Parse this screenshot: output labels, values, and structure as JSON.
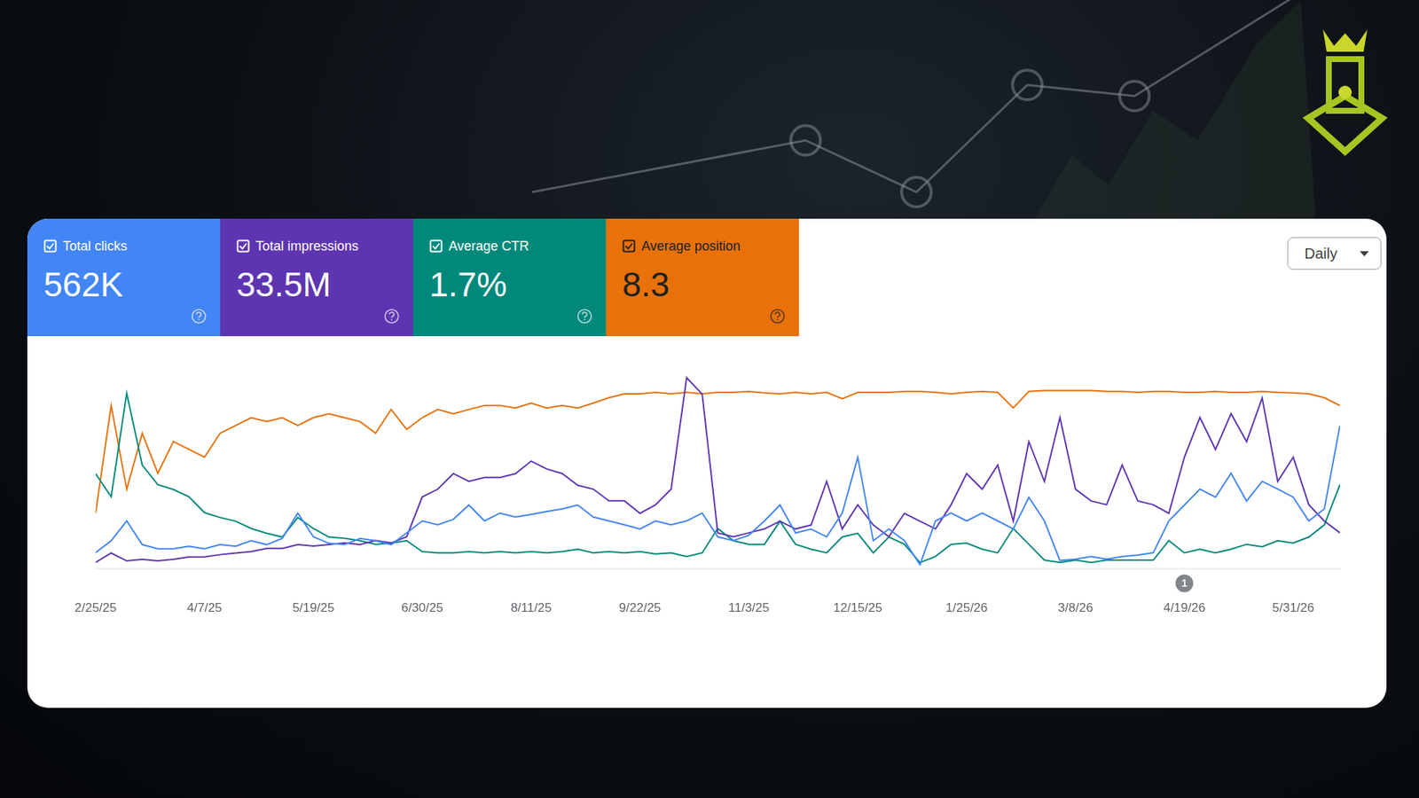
{
  "header": {
    "dropdown": "Daily"
  },
  "chart_data": {
    "type": "line",
    "categories": [
      "2/25/25",
      null,
      null,
      null,
      null,
      null,
      null,
      "4/7/25",
      null,
      null,
      null,
      null,
      null,
      null,
      "5/19/25",
      null,
      null,
      null,
      null,
      null,
      null,
      "6/30/25",
      null,
      null,
      null,
      null,
      null,
      null,
      "8/11/25",
      null,
      null,
      null,
      null,
      null,
      null,
      "9/22/25",
      null,
      null,
      null,
      null,
      null,
      null,
      "11/3/25",
      null,
      null,
      null,
      null,
      null,
      null,
      "12/15/25",
      null,
      null,
      null,
      null,
      null,
      null,
      "1/25/26",
      null,
      null,
      null,
      null,
      null,
      null,
      "3/8/26",
      null,
      null,
      null,
      null,
      null,
      null,
      "4/19/26",
      null,
      null,
      null,
      null,
      null,
      null,
      "5/31/26",
      null,
      null,
      null
    ],
    "series": [
      {
        "name": "Total clicks",
        "total": "562K",
        "color": "#4285f4",
        "ylim": [
          0,
          6000
        ],
        "values": [
          490,
          860,
          1470,
          740,
          610,
          610,
          690,
          610,
          740,
          690,
          860,
          740,
          930,
          1710,
          980,
          780,
          740,
          930,
          860,
          740,
          1100,
          1470,
          1350,
          1520,
          1960,
          1470,
          1710,
          1590,
          1670,
          1760,
          1840,
          1960,
          1590,
          1470,
          1350,
          1220,
          1470,
          1350,
          1470,
          1710,
          980,
          860,
          1030,
          1470,
          1960,
          1100,
          1220,
          980,
          1710,
          3430,
          860,
          1220,
          860,
          120,
          1470,
          1710,
          1470,
          1710,
          1470,
          1220,
          2200,
          1470,
          250,
          290,
          370,
          290,
          370,
          420,
          490,
          1470,
          1960,
          2450,
          2200,
          2940,
          2080,
          2690,
          2450,
          2200,
          1470,
          1840,
          4410
        ]
      },
      {
        "name": "Total impressions",
        "total": "33.5M",
        "color": "#5e35b1",
        "ylim": [
          0,
          250000
        ],
        "values": [
          8000,
          20000,
          10000,
          12000,
          10000,
          12000,
          15000,
          15000,
          18000,
          20000,
          22000,
          26000,
          26000,
          31000,
          29000,
          31000,
          33000,
          31000,
          36000,
          33000,
          41000,
          92000,
          102000,
          122000,
          112000,
          117000,
          117000,
          122000,
          138000,
          128000,
          122000,
          107000,
          102000,
          87000,
          87000,
          71000,
          82000,
          102000,
          245000,
          224000,
          46000,
          41000,
          46000,
          51000,
          61000,
          51000,
          56000,
          112000,
          51000,
          82000,
          56000,
          41000,
          71000,
          61000,
          51000,
          82000,
          122000,
          102000,
          133000,
          61000,
          163000,
          112000,
          194000,
          102000,
          87000,
          82000,
          133000,
          87000,
          82000,
          71000,
          143000,
          194000,
          153000,
          199000,
          163000,
          219000,
          112000,
          143000,
          82000,
          61000,
          46000
        ]
      },
      {
        "name": "Average CTR",
        "total": "1.7%",
        "color": "#00897b",
        "ylim": [
          0,
          16
        ],
        "values": [
          7.8,
          5.9,
          14.4,
          8.5,
          6.9,
          6.5,
          5.9,
          4.6,
          4.2,
          3.9,
          3.3,
          2.9,
          2.6,
          4.2,
          3.3,
          2.6,
          2.5,
          2.3,
          2.0,
          2.1,
          2.3,
          1.4,
          1.3,
          1.3,
          1.4,
          1.3,
          1.4,
          1.3,
          1.4,
          1.3,
          1.4,
          1.6,
          1.3,
          1.4,
          1.3,
          1.4,
          1.2,
          1.3,
          1.0,
          1.3,
          3.3,
          2.3,
          2.0,
          2.0,
          3.9,
          2.0,
          1.6,
          1.3,
          2.6,
          2.9,
          1.3,
          2.6,
          2.0,
          0.5,
          1.0,
          2.0,
          2.1,
          1.6,
          1.3,
          3.3,
          2.0,
          0.7,
          0.5,
          0.7,
          0.5,
          0.7,
          0.7,
          0.7,
          0.7,
          2.3,
          1.3,
          1.6,
          1.3,
          1.6,
          2.0,
          1.8,
          2.3,
          2.1,
          2.6,
          3.6,
          6.9
        ]
      },
      {
        "name": "Average position",
        "total": "8.3",
        "color": "#e8710a",
        "ylim": [
          80,
          0
        ],
        "values": [
          57.2,
          13.0,
          47.4,
          24.4,
          40.8,
          27.8,
          31.0,
          34.2,
          24.4,
          21.2,
          18.0,
          19.6,
          18.0,
          21.2,
          18.0,
          16.4,
          18.0,
          19.6,
          24.4,
          14.6,
          22.8,
          18.0,
          14.6,
          16.4,
          14.6,
          13.0,
          13.0,
          14.0,
          12.0,
          14.0,
          13.0,
          14.0,
          12.0,
          9.8,
          8.2,
          8.2,
          7.6,
          8.2,
          7.6,
          8.2,
          7.6,
          7.6,
          7.2,
          7.8,
          8.2,
          7.6,
          8.2,
          7.6,
          10.2,
          7.6,
          7.6,
          7.6,
          7.2,
          7.2,
          7.6,
          8.2,
          7.6,
          7.2,
          7.6,
          14.0,
          7.2,
          6.8,
          6.8,
          6.8,
          6.8,
          7.2,
          7.2,
          7.6,
          7.2,
          7.2,
          7.6,
          7.6,
          7.2,
          7.6,
          7.6,
          7.2,
          7.6,
          7.8,
          8.2,
          9.8,
          13.0
        ]
      }
    ],
    "annotations": [
      {
        "x": "4/19/26",
        "label": "1"
      }
    ],
    "grid": false,
    "tick_labels": "x"
  }
}
